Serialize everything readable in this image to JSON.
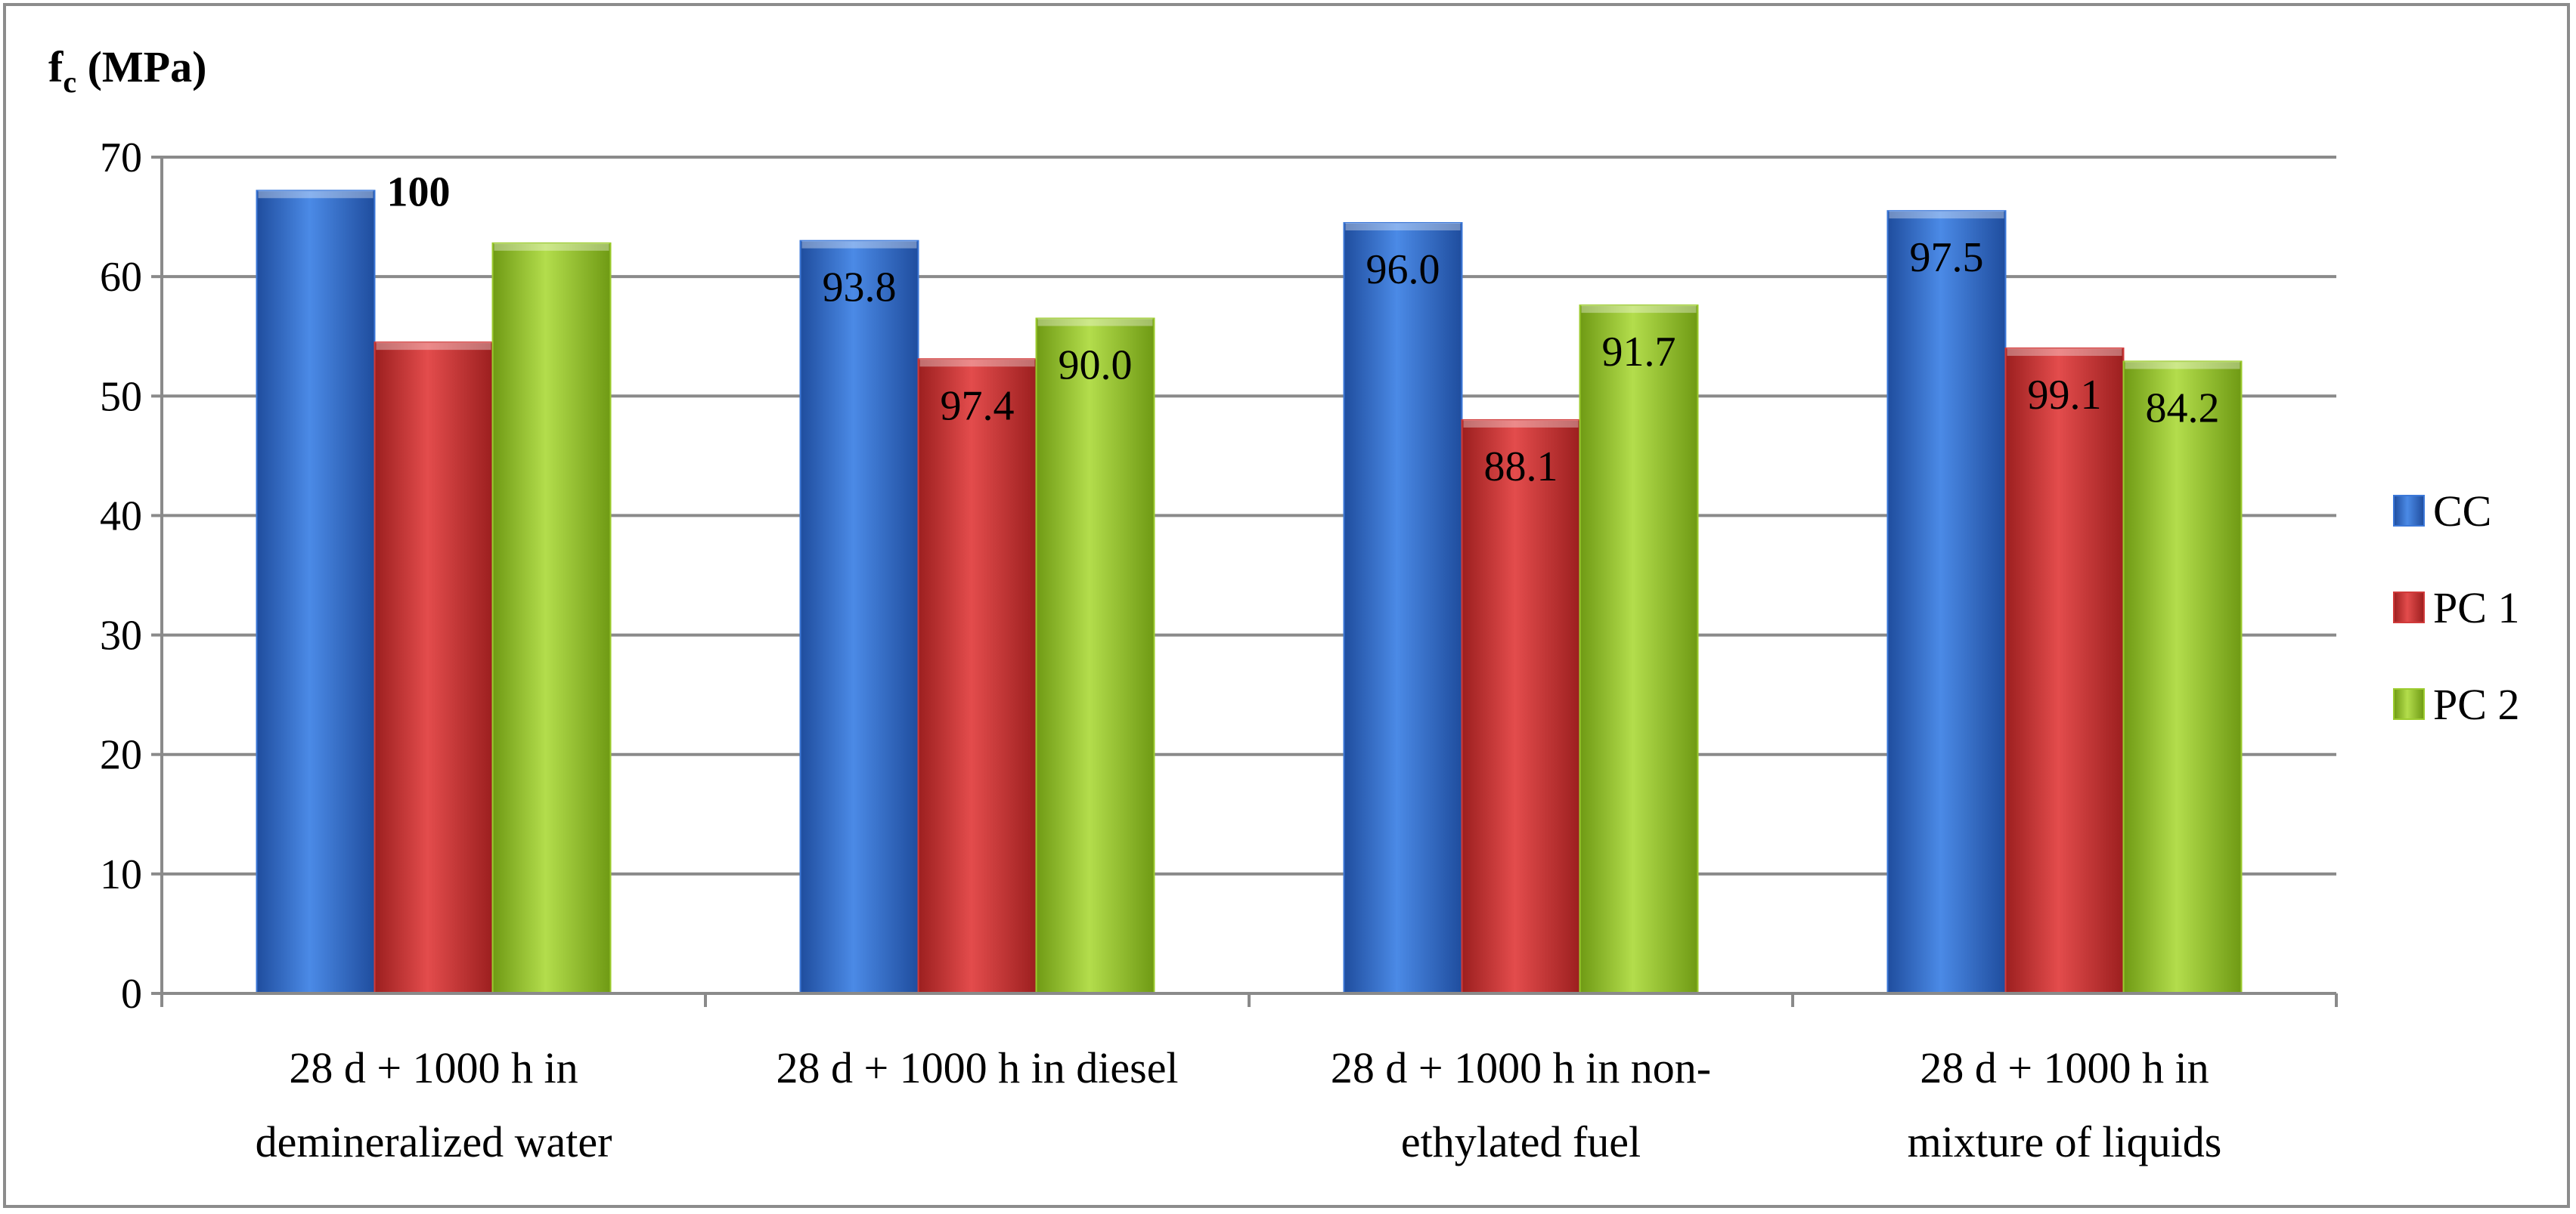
{
  "chart_data": {
    "type": "bar",
    "title": "",
    "ylabel_main": "f",
    "ylabel_sub": "c",
    "ylabel_unit": " (MPa)",
    "xlabel": "",
    "ylim": [
      0,
      70
    ],
    "yticks": [
      0,
      10,
      20,
      30,
      40,
      50,
      60,
      70
    ],
    "grid": true,
    "legend_position": "right",
    "categories": [
      [
        "28 d + 1000 h in",
        "demineralized water"
      ],
      [
        "28 d + 1000 h in diesel"
      ],
      [
        "28 d + 1000 h in non-",
        "ethylated fuel"
      ],
      [
        "28 d + 1000 h in",
        "mixture of liquids"
      ]
    ],
    "series": [
      {
        "name": "CC",
        "color": "#3c78d8",
        "values": [
          67.2,
          63.0,
          64.5,
          65.5
        ],
        "labels": [
          "100",
          "93.8",
          "96.0",
          "97.5"
        ]
      },
      {
        "name": "PC 1",
        "color": "#d03a3a",
        "values": [
          54.5,
          53.1,
          48.0,
          54.0
        ],
        "labels": [
          "",
          "97.4",
          "88.1",
          "99.1"
        ]
      },
      {
        "name": "PC 2",
        "color": "#9ccb2f",
        "values": [
          62.8,
          56.5,
          57.6,
          52.9
        ],
        "labels": [
          "",
          "90.0",
          "91.7",
          "84.2"
        ]
      }
    ]
  }
}
